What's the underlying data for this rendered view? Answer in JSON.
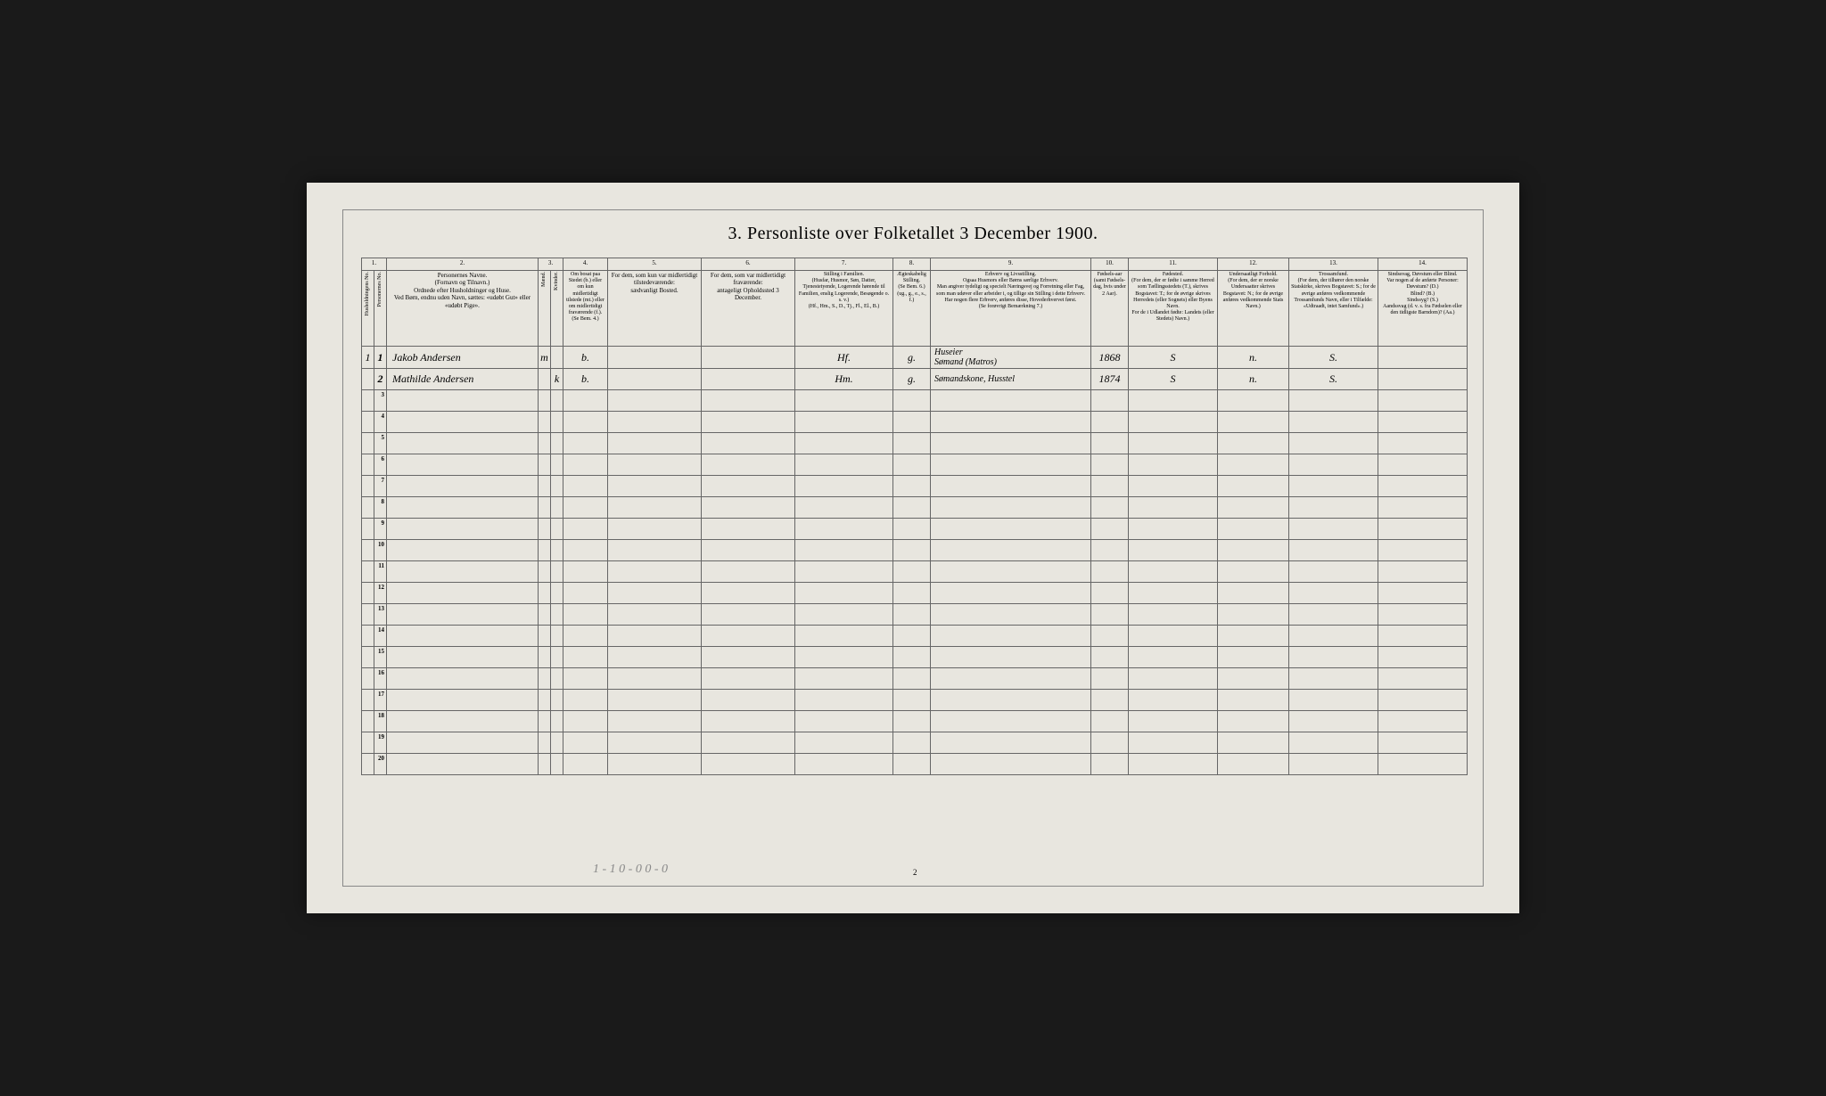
{
  "document": {
    "title": "3. Personliste over Folketallet 3 December 1900.",
    "page_number": "2",
    "footer_notation": "1 - 1    0 - 0    0 - 0",
    "background_color": "#e8e6df",
    "border_color": "#666666",
    "text_color": "#333333",
    "handwriting_color": "#3a3a3a"
  },
  "column_numbers": [
    "1.",
    "2.",
    "3.",
    "4.",
    "5.",
    "6.",
    "7.",
    "8.",
    "9.",
    "10.",
    "11.",
    "12.",
    "13.",
    "14."
  ],
  "headers": {
    "col1a": "Husholdningens No.",
    "col1b": "Personernes No.",
    "col2": "Personernes Navne.\n(Fornavn og Tilnavn.)\nOrdnede efter Husholdninger og Huse.\nVed Børn, endnu uden Navn, sættes: «udøbt Gut» eller «udøbt Pige».",
    "col3": "Kjøn.",
    "col3a": "Mænd.",
    "col3b": "Kvinder.",
    "col3_sub": "m. | k.",
    "col4": "Om bosat paa Stedet (b.) eller om kun midlertidigt tilstede (mt.) eller om midlertidigt fraværende (f.).\n(Se Bem. 4.)",
    "col5": "For dem, som kun var midlertidigt tilstedeværende:\nsædvanligt Bosted.",
    "col6": "For dem, som var midlertidigt fraværende:\nantageligt Opholdssted 3 December.",
    "col7": "Stilling i Familien.\n(Husfar, Husmor, Søn, Datter, Tjenestetyende, Logerende hørende til Familien, enslig Logerende, Besøgende o. s. v.)\n(Hf., Hm., S., D., Tj., Fl., El., B.)",
    "col8": "Ægteskabelig Stilling.\n(Se Bem. 6.)\n(ug., g., e., s., f.)",
    "col9": "Erhverv og Livsstilling.\nOgsaa Husmors eller Børns særlige Erhverv.\nMan angiver tydeligt og specielt Næringsvej og Forretning eller Fag, som man udøver eller arbeider i, og tillige sin Stilling i dette Erhverv.\nHar nogen flere Erhverv, anføres disse, Hovederhvervet først.\n(Se forøvrigt Bemærkning 7.)",
    "col10": "Fødsels-aar\n(samt Fødsels-dag, hvis under 2 Aar).",
    "col11": "Fødested.\n(For dem, der er fødte i samme Herred som Tællingsstedets (T.), skrives Bogstavet: T.; for de øvrige skrives Herredets (eller Sognets) eller Byens Navn.\nFor de i Udlandet fødte: Landets (eller Stedets) Navn.)",
    "col12": "Undersaatligt Forhold.\n(For dem, der er norske Undersaatter skrives Bogstavet: N.; for de øvrige anføres vedkommende Stats Navn.)",
    "col13": "Trossamfund.\n(For dem, der tilhører den norske Statskirke, skrives Bogstavet: S.; for de øvrige anføres vedkommende Trossamfunds Navn, eller i Tilfælde: «Udtraadt, intet Samfund».)",
    "col14": "Sindssvag, Døvstum eller Blind.\nVar nogen af de anførte Personer:\nDøvstum? (D.)\nBlind? (B.)\nSindssyg? (S.)\nAandssvag (d. v. s. fra Fødselen eller den tidligste Barndom)? (Aa.)"
  },
  "column_widths": {
    "col1a": "14px",
    "col1b": "14px",
    "col2": "170px",
    "col3a": "14px",
    "col3b": "14px",
    "col4": "50px",
    "col5": "105px",
    "col6": "105px",
    "col7": "110px",
    "col8": "42px",
    "col9": "180px",
    "col10": "42px",
    "col11": "100px",
    "col12": "80px",
    "col13": "100px",
    "col14": "100px"
  },
  "rows": [
    {
      "household_no": "1",
      "person_no": "1",
      "name": "Jakob Andersen",
      "sex_m": "m",
      "sex_k": "",
      "residence": "b.",
      "temp_present": "",
      "temp_absent": "",
      "family_position": "Hf.",
      "marital": "g.",
      "occupation": "Huseier\nSømand (Matros)",
      "birth_year": "1868",
      "birthplace": "S",
      "nationality": "n.",
      "religion": "S.",
      "disability": ""
    },
    {
      "household_no": "",
      "person_no": "2",
      "name": "Mathilde Andersen",
      "sex_m": "",
      "sex_k": "k",
      "residence": "b.",
      "temp_present": "",
      "temp_absent": "",
      "family_position": "Hm.",
      "marital": "g.",
      "occupation": "Sømandskone, Husstel",
      "birth_year": "1874",
      "birthplace": "S",
      "nationality": "n.",
      "religion": "S.",
      "disability": ""
    }
  ],
  "total_rows": 20
}
